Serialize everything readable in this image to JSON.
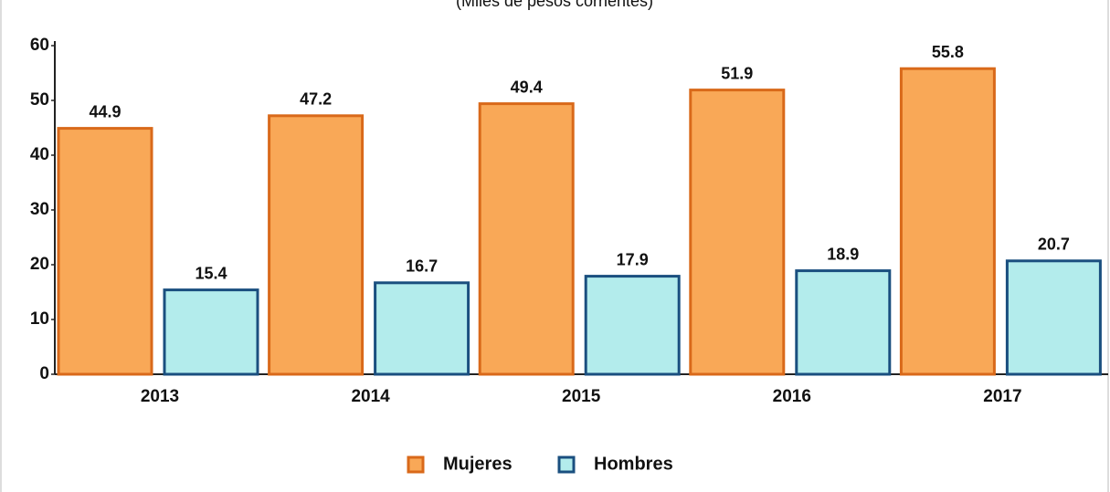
{
  "chart_data": {
    "type": "bar",
    "subtitle": "(Miles de pesos corrientes)",
    "categories": [
      "2013",
      "2014",
      "2015",
      "2016",
      "2017"
    ],
    "series": [
      {
        "name": "Mujeres",
        "color": "#f9a857",
        "stroke": "#d9691a",
        "values": [
          44.9,
          47.2,
          49.4,
          51.9,
          55.8
        ]
      },
      {
        "name": "Hombres",
        "color": "#b3ecec",
        "stroke": "#1a4f7f",
        "values": [
          15.4,
          16.7,
          17.9,
          18.9,
          20.7
        ]
      }
    ],
    "ylim": [
      0,
      60
    ],
    "yticks": [
      0,
      10,
      20,
      30,
      40,
      50,
      60
    ],
    "grid": false,
    "legend": "bottom"
  }
}
